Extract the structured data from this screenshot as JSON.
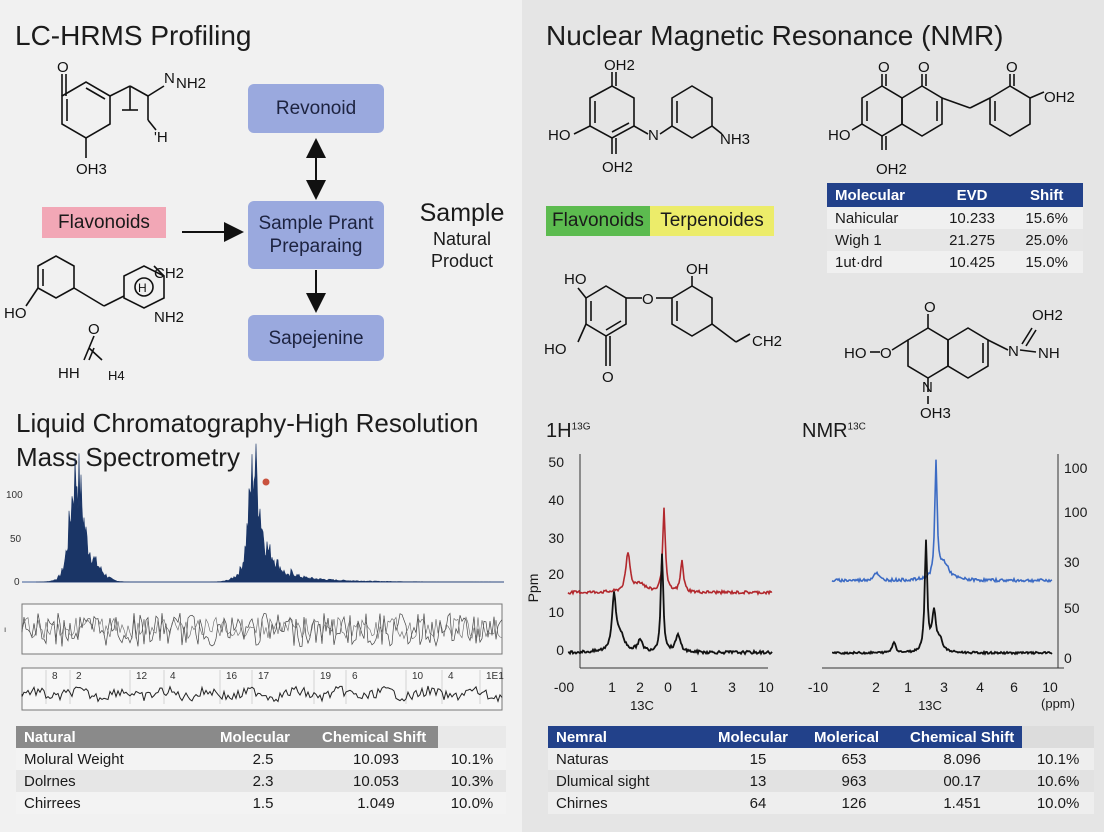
{
  "left": {
    "title": "LC-HRMS Profiling",
    "flow": {
      "top": "Revonoid",
      "middle_line1": "Sample Prant",
      "middle_line2": "Preparaing",
      "bottom": "Sapejenine",
      "side_tag": "Flavonoids",
      "sample_title": "Sample",
      "sample_sub1": "Natural",
      "sample_sub2": "Product"
    },
    "molecules": {
      "m1_labels": [
        "O",
        "N",
        "NH2",
        "'H",
        "OH3"
      ],
      "m2_labels": [
        "HO",
        "CH2",
        "NH2",
        "H",
        "O",
        "HH",
        "H4"
      ]
    },
    "lc_title_line1": "Liquid Chromatography-High Resolution",
    "lc_title_line2": "Mass Spectrometry",
    "lc_axis_ticks": [
      "100",
      "50",
      "0"
    ],
    "trace2_labels": [
      "8",
      "2",
      "12",
      "4",
      "16",
      "17",
      "19",
      "6",
      "10",
      "4",
      "1E1"
    ],
    "table": {
      "headers": [
        "Natural",
        "Molecular",
        "Chemical Shift",
        ""
      ],
      "rows": [
        [
          "Molural Weight",
          "2.5",
          "10.093",
          "10.1%"
        ],
        [
          "Dolrnes",
          "2.3",
          "10.053",
          "10.3%"
        ],
        [
          "Chirrees",
          "1.5",
          "1.049",
          "10.0%"
        ]
      ]
    }
  },
  "right": {
    "title": "Nuclear Magnetic Resonance (NMR)",
    "tags": {
      "flavonoids": "Flavonoids",
      "terpenoides": "Terpenoides"
    },
    "molecules": {
      "m3_labels": [
        "OH2",
        "HO",
        "N",
        "NH3",
        "OH2"
      ],
      "m4_labels": [
        "O",
        "O",
        "O",
        "OH2",
        "HO",
        "OH2"
      ],
      "m5_labels": [
        "HO",
        "OH",
        "O",
        "HO",
        "O",
        "CH2"
      ],
      "m6_labels": [
        "O",
        "OH2",
        "HO",
        "O",
        "N",
        "NH",
        "N",
        "OH3"
      ]
    },
    "small_table": {
      "headers": [
        "Molecular",
        "EVD",
        "Shift"
      ],
      "rows": [
        [
          "Nahicular",
          "10.233",
          "15.6%"
        ],
        [
          "Wigh 1",
          "21.275",
          "25.0%"
        ],
        [
          "1ut·drd",
          "10.425",
          "15.0%"
        ]
      ]
    },
    "spectrum1": {
      "title": "1H",
      "title_sup": "13G",
      "ylabel": "Ppm",
      "yticks": [
        "50",
        "40",
        "30",
        "20",
        "10",
        "0"
      ],
      "xticks": [
        "-00",
        "1",
        "2",
        "0",
        "1",
        "3",
        "10"
      ],
      "xlabel": "13C",
      "colors": {
        "red": "#b2282d",
        "black": "#111111"
      }
    },
    "spectrum2": {
      "title": "NMR",
      "title_sup": "13C",
      "yticks": [
        "100",
        "100",
        "30",
        "50",
        "0"
      ],
      "xticks": [
        "-10",
        "2",
        "1",
        "3",
        "4",
        "6",
        "10"
      ],
      "xlabel": "13C",
      "xunit": "(ppm)",
      "colors": {
        "blue": "#3c6bc4",
        "black": "#111111"
      }
    },
    "table": {
      "headers": [
        "Nemral",
        "Molecular",
        "Molerical",
        "Chemical Shift",
        ""
      ],
      "rows": [
        [
          "Naturas",
          "15",
          "653",
          "8.096",
          "10.1%"
        ],
        [
          "Dlumical sight",
          "13",
          "963",
          "00.17",
          "10.6%"
        ],
        [
          "Chirnes",
          "64",
          "126",
          "1.451",
          "10.0%"
        ]
      ]
    }
  },
  "colors": {
    "flow_box": "#9aa9de",
    "flavonoid_pink": "#f2a7b6",
    "flavonoid_green": "#5cbb4f",
    "terpenoid_yellow": "#ecec6a",
    "table_header_gray": "#8a8a8a",
    "table_header_blue": "#22418a",
    "chromatogram_navy": "#1a3566"
  }
}
